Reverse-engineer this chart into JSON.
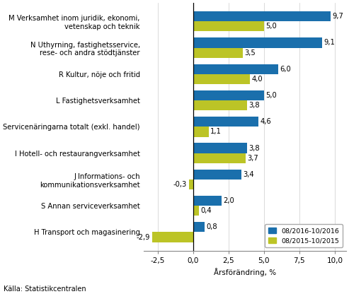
{
  "categories": [
    "H Transport och magasinering",
    "S Annan serviceverksamhet",
    "J Informations- och\nkommunikationsverksamhet",
    "I Hotell- och restaurangverksamhet",
    "Servicenäringarna totalt (exkl. handel)",
    "L Fastighetsverksamhet",
    "R Kultur, nöje och fritid",
    "N Uthyrning, fastighetsservice,\nrese- och andra stödtjänster",
    "M Verksamhet inom juridik, ekonomi,\nvetenskap och teknik"
  ],
  "values_2016": [
    0.8,
    2.0,
    3.4,
    3.8,
    4.6,
    5.0,
    6.0,
    9.1,
    9.7
  ],
  "values_2015": [
    -2.9,
    0.4,
    -0.3,
    3.7,
    1.1,
    3.8,
    4.0,
    3.5,
    5.0
  ],
  "color_2016": "#1a6fac",
  "color_2015": "#bcc426",
  "xlabel": "Årsförändring, %",
  "legend_2016": "08/2016-10/2016",
  "legend_2015": "08/2015-10/2015",
  "source": "Källa: Statistikcentralen",
  "xlim": [
    -3.5,
    10.8
  ],
  "xticks": [
    -2.5,
    0.0,
    2.5,
    5.0,
    7.5,
    10.0
  ],
  "xtick_labels": [
    "-2,5",
    "0,0",
    "2,5",
    "5,0",
    "7,5",
    "10,0"
  ],
  "bar_height": 0.38,
  "label_fontsize": 7.2,
  "tick_fontsize": 7.5,
  "value_fontsize": 7.2
}
